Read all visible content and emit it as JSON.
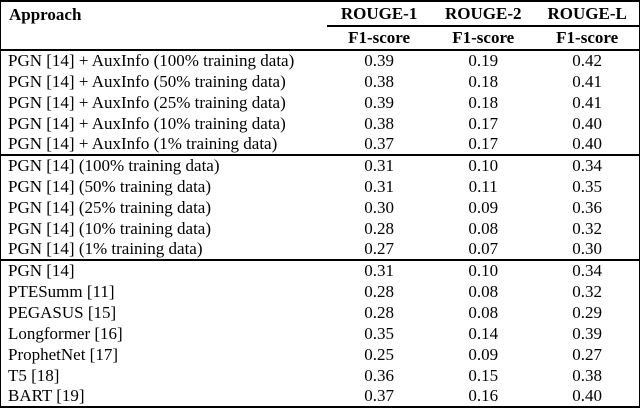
{
  "table": {
    "title": "summarization-results-table",
    "columns": [
      {
        "label": "Approach"
      },
      {
        "label": "ROUGE-1",
        "sub": "F1-score"
      },
      {
        "label": "ROUGE-2",
        "sub": "F1-score"
      },
      {
        "label": "ROUGE-L",
        "sub": "F1-score"
      }
    ],
    "sections": [
      {
        "rows": [
          {
            "approach": "PGN [14] + AuxInfo (100% training data)",
            "scores": [
              "0.39",
              "0.19",
              "0.42"
            ]
          },
          {
            "approach": "PGN [14] + AuxInfo (50% training data)",
            "scores": [
              "0.38",
              "0.18",
              "0.41"
            ]
          },
          {
            "approach": "PGN [14] + AuxInfo (25% training data)",
            "scores": [
              "0.39",
              "0.18",
              "0.41"
            ]
          },
          {
            "approach": "PGN [14] + AuxInfo (10% training data)",
            "scores": [
              "0.38",
              "0.17",
              "0.40"
            ]
          },
          {
            "approach": "PGN [14] + AuxInfo (1% training data)",
            "scores": [
              "0.37",
              "0.17",
              "0.40"
            ]
          }
        ]
      },
      {
        "rows": [
          {
            "approach": "PGN [14] (100% training data)",
            "scores": [
              "0.31",
              "0.10",
              "0.34"
            ]
          },
          {
            "approach": "PGN [14] (50% training data)",
            "scores": [
              "0.31",
              "0.11",
              "0.35"
            ]
          },
          {
            "approach": "PGN [14] (25% training data)",
            "scores": [
              "0.30",
              "0.09",
              "0.36"
            ]
          },
          {
            "approach": "PGN [14] (10% training data)",
            "scores": [
              "0.28",
              "0.08",
              "0.32"
            ]
          },
          {
            "approach": "PGN [14] (1% training data)",
            "scores": [
              "0.27",
              "0.07",
              "0.30"
            ]
          }
        ]
      },
      {
        "rows": [
          {
            "approach": "PGN [14]",
            "scores": [
              "0.31",
              "0.10",
              "0.34"
            ]
          },
          {
            "approach": "PTESumm [11]",
            "scores": [
              "0.28",
              "0.08",
              "0.32"
            ]
          },
          {
            "approach": "PEGASUS [15]",
            "scores": [
              "0.28",
              "0.08",
              "0.29"
            ]
          },
          {
            "approach": "Longformer [16]",
            "scores": [
              "0.35",
              "0.14",
              "0.39"
            ]
          },
          {
            "approach": "ProphetNet [17]",
            "scores": [
              "0.25",
              "0.09",
              "0.27"
            ]
          },
          {
            "approach": "T5 [18]",
            "scores": [
              "0.36",
              "0.15",
              "0.38"
            ]
          },
          {
            "approach": "BART [19]",
            "scores": [
              "0.37",
              "0.16",
              "0.40"
            ]
          }
        ]
      }
    ]
  },
  "colors": {
    "text": "#000000",
    "background": "#ffffff",
    "rule": "#000000"
  }
}
